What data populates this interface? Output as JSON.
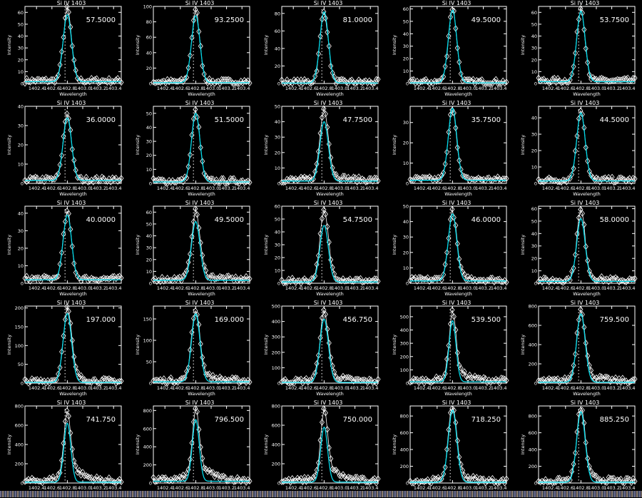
{
  "chart_data": {
    "type": "scatter",
    "layout": "5x5 grid of line-profile panels",
    "common": {
      "title": "Si IV 1403",
      "xlabel": "Wavelength",
      "ylabel": "Intensity",
      "xlim": [
        1402.25,
        1403.5
      ],
      "xticks": [
        "1402.4",
        "1402.6",
        "1402.8",
        "1403.0",
        "1403.2",
        "1403.4"
      ],
      "reference_line": 1402.77,
      "observed_color": "#ffffff",
      "observed_marker": "diamond",
      "fit_color": "#00d8e8",
      "background_color": "#000000",
      "grid": false
    },
    "panels": [
      {
        "value": "57.5000",
        "ylim": [
          0,
          65
        ],
        "ystep": 10,
        "peak": 62,
        "fit_peak": 58,
        "bg": 1.5,
        "wing": 0
      },
      {
        "value": "93.2500",
        "ylim": [
          0,
          100
        ],
        "ystep": 20,
        "peak": 93,
        "fit_peak": 88,
        "bg": 1,
        "wing": 0
      },
      {
        "value": "81.0000",
        "ylim": [
          0,
          88
        ],
        "ystep": 20,
        "peak": 81,
        "fit_peak": 82,
        "bg": 0.5,
        "wing": 0
      },
      {
        "value": "49.5000",
        "ylim": [
          0,
          62
        ],
        "ystep": 10,
        "peak": 60,
        "fit_peak": 59,
        "bg": 0.5,
        "wing": 0
      },
      {
        "value": "53.7500",
        "ylim": [
          0,
          65
        ],
        "ystep": 10,
        "peak": 63,
        "fit_peak": 61,
        "bg": 1.5,
        "wing": 0
      },
      {
        "value": "36.0000",
        "ylim": [
          0,
          40
        ],
        "ystep": 10,
        "peak": 36,
        "fit_peak": 34,
        "bg": 1.5,
        "wing": 0
      },
      {
        "value": "51.5000",
        "ylim": [
          0,
          55
        ],
        "ystep": 10,
        "peak": 51,
        "fit_peak": 50,
        "bg": 1,
        "wing": 0
      },
      {
        "value": "47.7500",
        "ylim": [
          0,
          50
        ],
        "ystep": 10,
        "peak": 48,
        "fit_peak": 40,
        "bg": 1.5,
        "wing": 0.15
      },
      {
        "value": "35.7500",
        "ylim": [
          0,
          38
        ],
        "ystep": 10,
        "peak": 37,
        "fit_peak": 37,
        "bg": 1.5,
        "wing": 0
      },
      {
        "value": "44.5000",
        "ylim": [
          0,
          47
        ],
        "ystep": 10,
        "peak": 45,
        "fit_peak": 43,
        "bg": 1.5,
        "wing": 0
      },
      {
        "value": "40.0000",
        "ylim": [
          0,
          44
        ],
        "ystep": 10,
        "peak": 40,
        "fit_peak": 39,
        "bg": 2,
        "wing": 0
      },
      {
        "value": "49.5000",
        "ylim": [
          0,
          65
        ],
        "ystep": 10,
        "peak": 60,
        "fit_peak": 52,
        "bg": 2.5,
        "wing": 0.15
      },
      {
        "value": "54.7500",
        "ylim": [
          0,
          60
        ],
        "ystep": 10,
        "peak": 55,
        "fit_peak": 45,
        "bg": 1,
        "wing": 0.15
      },
      {
        "value": "46.0000",
        "ylim": [
          0,
          50
        ],
        "ystep": 10,
        "peak": 46,
        "fit_peak": 45,
        "bg": 1.5,
        "wing": 0.1
      },
      {
        "value": "58.0000",
        "ylim": [
          0,
          62
        ],
        "ystep": 10,
        "peak": 58,
        "fit_peak": 52,
        "bg": 1.5,
        "wing": 0.1
      },
      {
        "value": "197.000",
        "ylim": [
          0,
          205
        ],
        "ystep": 50,
        "peak": 197,
        "fit_peak": 185,
        "bg": 2,
        "wing": 0.15
      },
      {
        "value": "169.000",
        "ylim": [
          0,
          180
        ],
        "ystep": 50,
        "peak": 169,
        "fit_peak": 162,
        "bg": 3,
        "wing": 0.2
      },
      {
        "value": "456.750",
        "ylim": [
          0,
          500
        ],
        "ystep": 100,
        "peak": 457,
        "fit_peak": 415,
        "bg": 5,
        "wing": 0.2
      },
      {
        "value": "539.500",
        "ylim": [
          0,
          580
        ],
        "ystep": 100,
        "peak": 540,
        "fit_peak": 470,
        "bg": 10,
        "wing": 0.25
      },
      {
        "value": "759.500",
        "ylim": [
          0,
          800
        ],
        "ystep": 200,
        "peak": 760,
        "fit_peak": 720,
        "bg": 10,
        "wing": 0.2
      },
      {
        "value": "741.750",
        "ylim": [
          0,
          800
        ],
        "ystep": 200,
        "peak": 742,
        "fit_peak": 620,
        "bg": 10,
        "wing": 0.35
      },
      {
        "value": "796.500",
        "ylim": [
          0,
          850
        ],
        "ystep": 200,
        "peak": 797,
        "fit_peak": 700,
        "bg": 20,
        "wing": 0.35
      },
      {
        "value": "750.000",
        "ylim": [
          0,
          800
        ],
        "ystep": 200,
        "peak": 750,
        "fit_peak": 580,
        "bg": 10,
        "wing": 0.35
      },
      {
        "value": "718.250",
        "ylim": [
          0,
          920
        ],
        "ystep": 200,
        "peak": 900,
        "fit_peak": 870,
        "bg": 10,
        "wing": 0.2
      },
      {
        "value": "885.250",
        "ylim": [
          0,
          920
        ],
        "ystep": 200,
        "peak": 885,
        "fit_peak": 850,
        "bg": 10,
        "wing": 0.15
      }
    ]
  }
}
